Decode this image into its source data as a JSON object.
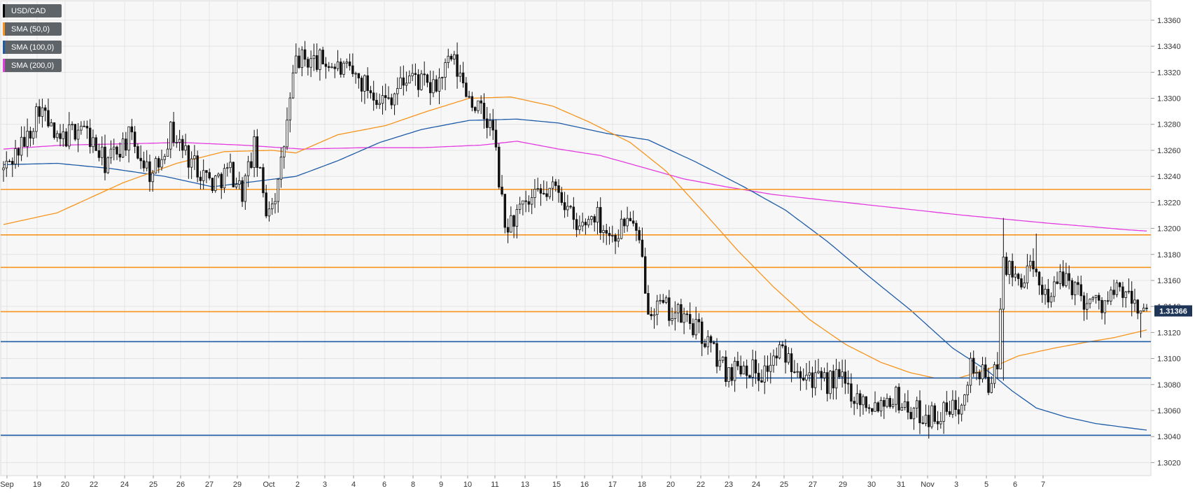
{
  "legend": [
    {
      "label": "USD/CAD",
      "color": "#000000"
    },
    {
      "label": "SMA (50,0)",
      "color": "#f7941d"
    },
    {
      "label": "SMA (100,0)",
      "color": "#1f5ca8"
    },
    {
      "label": "SMA (200,0)",
      "color": "#e33de0"
    }
  ],
  "last_price": "1.31366",
  "chart_data": {
    "type": "candlestick",
    "symbol": "USD/CAD",
    "ylim": [
      1.301,
      1.3375
    ],
    "y_ticks": [
      "1.3020",
      "1.3040",
      "1.3060",
      "1.3080",
      "1.3100",
      "1.3120",
      "1.3140",
      "1.3160",
      "1.3180",
      "1.3200",
      "1.3220",
      "1.3240",
      "1.3260",
      "1.3280",
      "1.3300",
      "1.3320",
      "1.3340",
      "1.3360"
    ],
    "x_ticks": [
      "Sep",
      "19",
      "20",
      "22",
      "24",
      "25",
      "26",
      "27",
      "29",
      "Oct",
      "2",
      "3",
      "4",
      "6",
      "8",
      "9",
      "10",
      "11",
      "13",
      "15",
      "16",
      "17",
      "18",
      "20",
      "22",
      "23",
      "24",
      "25",
      "27",
      "29",
      "30",
      "31",
      "Nov",
      "3",
      "5",
      "6",
      "7"
    ],
    "grid": true,
    "horizontal_levels": [
      {
        "value": 1.323,
        "color": "#f7941d"
      },
      {
        "value": 1.3195,
        "color": "#f7941d"
      },
      {
        "value": 1.317,
        "color": "#f7941d"
      },
      {
        "value": 1.3136,
        "color": "#f7941d"
      },
      {
        "value": 1.3113,
        "color": "#1f5ca8"
      },
      {
        "value": 1.3085,
        "color": "#1f5ca8"
      },
      {
        "value": 1.3041,
        "color": "#1f5ca8"
      }
    ],
    "price_anchors": [
      [
        0,
        1.3245
      ],
      [
        8,
        1.327
      ],
      [
        12,
        1.3295
      ],
      [
        18,
        1.3265
      ],
      [
        26,
        1.328
      ],
      [
        34,
        1.325
      ],
      [
        42,
        1.327
      ],
      [
        50,
        1.324
      ],
      [
        56,
        1.3275
      ],
      [
        62,
        1.3255
      ],
      [
        70,
        1.3235
      ],
      [
        76,
        1.3245
      ],
      [
        80,
        1.3228
      ],
      [
        84,
        1.3262
      ],
      [
        88,
        1.3215
      ],
      [
        92,
        1.3232
      ],
      [
        98,
        1.333
      ],
      [
        108,
        1.3328
      ],
      [
        118,
        1.3316
      ],
      [
        128,
        1.3298
      ],
      [
        136,
        1.3318
      ],
      [
        144,
        1.3306
      ],
      [
        150,
        1.333
      ],
      [
        156,
        1.3302
      ],
      [
        164,
        1.3275
      ],
      [
        168,
        1.32
      ],
      [
        172,
        1.321
      ],
      [
        178,
        1.3222
      ],
      [
        186,
        1.3232
      ],
      [
        192,
        1.3198
      ],
      [
        198,
        1.3212
      ],
      [
        204,
        1.3193
      ],
      [
        210,
        1.321
      ],
      [
        214,
        1.3175
      ],
      [
        216,
        1.3142
      ],
      [
        222,
        1.3138
      ],
      [
        230,
        1.3128
      ],
      [
        236,
        1.3112
      ],
      [
        242,
        1.309
      ],
      [
        248,
        1.3096
      ],
      [
        254,
        1.3088
      ],
      [
        260,
        1.3105
      ],
      [
        268,
        1.3092
      ],
      [
        274,
        1.308
      ],
      [
        280,
        1.3085
      ],
      [
        286,
        1.307
      ],
      [
        292,
        1.3065
      ],
      [
        298,
        1.3072
      ],
      [
        304,
        1.306
      ],
      [
        310,
        1.3056
      ],
      [
        316,
        1.3058
      ],
      [
        320,
        1.3065
      ],
      [
        324,
        1.3095
      ],
      [
        330,
        1.3082
      ],
      [
        333,
        1.309
      ],
      [
        335,
        1.3178
      ],
      [
        338,
        1.316
      ],
      [
        344,
        1.3166
      ],
      [
        350,
        1.315
      ],
      [
        356,
        1.3163
      ],
      [
        362,
        1.3146
      ],
      [
        368,
        1.3142
      ],
      [
        374,
        1.3152
      ],
      [
        380,
        1.314
      ],
      [
        383,
        1.3136
      ]
    ],
    "candles": [],
    "sma50": [
      [
        0,
        1.3203
      ],
      [
        18,
        1.3212
      ],
      [
        40,
        1.3235
      ],
      [
        58,
        1.325
      ],
      [
        74,
        1.3259
      ],
      [
        90,
        1.326
      ],
      [
        98,
        1.3258
      ],
      [
        112,
        1.3272
      ],
      [
        128,
        1.3279
      ],
      [
        142,
        1.329
      ],
      [
        156,
        1.33
      ],
      [
        170,
        1.3301
      ],
      [
        184,
        1.3294
      ],
      [
        196,
        1.3282
      ],
      [
        210,
        1.3266
      ],
      [
        222,
        1.3244
      ],
      [
        234,
        1.3214
      ],
      [
        246,
        1.3183
      ],
      [
        258,
        1.3155
      ],
      [
        270,
        1.313
      ],
      [
        282,
        1.3111
      ],
      [
        294,
        1.3097
      ],
      [
        304,
        1.3089
      ],
      [
        312,
        1.3085
      ],
      [
        320,
        1.3085
      ],
      [
        330,
        1.3092
      ],
      [
        340,
        1.3102
      ],
      [
        352,
        1.3108
      ],
      [
        364,
        1.3113
      ],
      [
        372,
        1.3116
      ],
      [
        383,
        1.3122
      ]
    ],
    "sma100": [
      [
        0,
        1.3249
      ],
      [
        18,
        1.325
      ],
      [
        36,
        1.3246
      ],
      [
        54,
        1.324
      ],
      [
        70,
        1.3232
      ],
      [
        84,
        1.3236
      ],
      [
        98,
        1.324
      ],
      [
        112,
        1.3252
      ],
      [
        126,
        1.3266
      ],
      [
        140,
        1.3276
      ],
      [
        156,
        1.3283
      ],
      [
        172,
        1.3284
      ],
      [
        186,
        1.3281
      ],
      [
        202,
        1.3273
      ],
      [
        216,
        1.3268
      ],
      [
        232,
        1.3251
      ],
      [
        248,
        1.3232
      ],
      [
        262,
        1.3214
      ],
      [
        276,
        1.319
      ],
      [
        290,
        1.3163
      ],
      [
        304,
        1.3137
      ],
      [
        318,
        1.3108
      ],
      [
        330,
        1.309
      ],
      [
        338,
        1.3075
      ],
      [
        346,
        1.3062
      ],
      [
        356,
        1.3055
      ],
      [
        366,
        1.305
      ],
      [
        376,
        1.3047
      ],
      [
        383,
        1.3045
      ]
    ],
    "sma200": [
      [
        0,
        1.3261
      ],
      [
        20,
        1.3264
      ],
      [
        40,
        1.3265
      ],
      [
        60,
        1.3266
      ],
      [
        80,
        1.3264
      ],
      [
        100,
        1.3261
      ],
      [
        120,
        1.3262
      ],
      [
        140,
        1.3262
      ],
      [
        160,
        1.3264
      ],
      [
        172,
        1.3267
      ],
      [
        186,
        1.3261
      ],
      [
        200,
        1.3256
      ],
      [
        214,
        1.3247
      ],
      [
        228,
        1.3238
      ],
      [
        242,
        1.3232
      ],
      [
        258,
        1.3226
      ],
      [
        274,
        1.3222
      ],
      [
        290,
        1.3218
      ],
      [
        306,
        1.3214
      ],
      [
        322,
        1.321
      ],
      [
        336,
        1.3207
      ],
      [
        350,
        1.3204
      ],
      [
        366,
        1.3201
      ],
      [
        376,
        1.3199
      ],
      [
        383,
        1.3198
      ]
    ]
  }
}
